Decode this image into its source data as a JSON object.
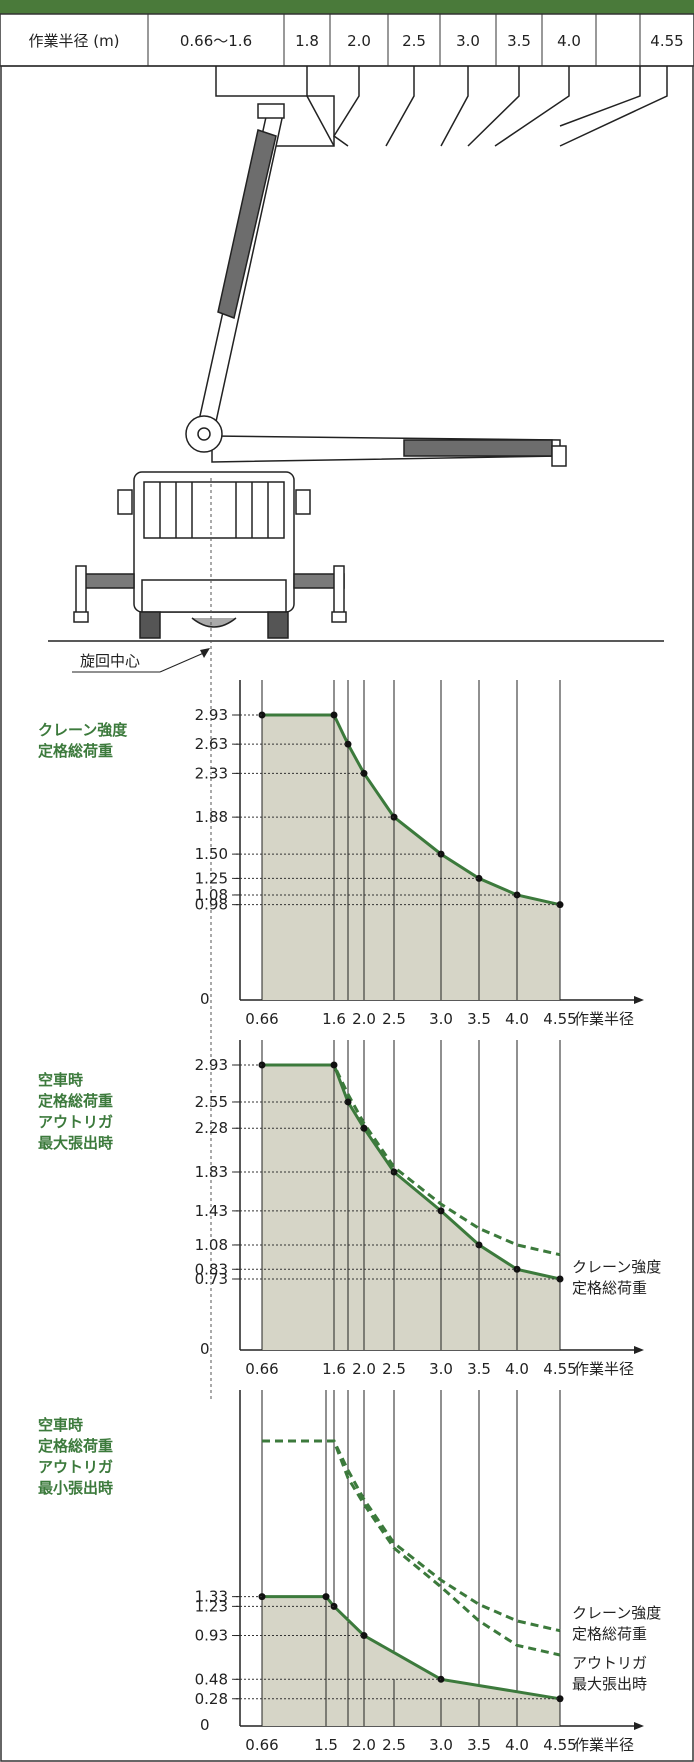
{
  "header": {
    "label": "作業半径 (m)",
    "radii": [
      "0.66〜1.6",
      "1.8",
      "2.0",
      "2.5",
      "3.0",
      "3.5",
      "4.0",
      "4.55"
    ]
  },
  "rotation_center_label": "旋回中心",
  "colors": {
    "accent": "#3c7a3c",
    "fill": "#d6d5c7",
    "line": "#222222",
    "header_bar": "#4a7a3a"
  },
  "chart_data": [
    {
      "type": "area",
      "title": [
        "クレーン強度",
        "定格総荷重"
      ],
      "xlabel": "作業半径",
      "x_ticks": [
        "0.66",
        "1.6",
        "2.0",
        "2.5",
        "3.0",
        "3.5",
        "4.0",
        "4.55"
      ],
      "y_ticks": [
        "2.93",
        "2.63",
        "2.33",
        "1.88",
        "1.50",
        "1.25",
        "1.08",
        "0.98"
      ],
      "y_tick_colors": [
        "#222",
        "#222",
        "#222",
        "#222",
        "#222",
        "#222",
        "#3c7a3c",
        "#3c7a3c"
      ],
      "zero_label": "0",
      "series": [
        {
          "x": [
            0.66,
            1.6,
            1.8,
            2.0,
            2.5,
            3.0,
            3.5,
            4.0,
            4.55
          ],
          "y": [
            2.93,
            2.93,
            2.63,
            2.33,
            1.88,
            1.5,
            1.25,
            1.08,
            0.98
          ]
        }
      ],
      "notes": []
    },
    {
      "type": "area",
      "title": [
        "空車時",
        "定格総荷重",
        "アウトリガ",
        "最大張出時"
      ],
      "xlabel": "作業半径",
      "x_ticks": [
        "0.66",
        "1.6",
        "2.0",
        "2.5",
        "3.0",
        "3.5",
        "4.0",
        "4.55"
      ],
      "y_ticks": [
        "2.93",
        "2.55",
        "2.28",
        "1.83",
        "1.43",
        "1.08",
        "0.83",
        "0.73"
      ],
      "y_tick_colors": [
        "#222",
        "#222",
        "#222",
        "#222",
        "#222",
        "#222",
        "#3c7a3c",
        "#3c7a3c"
      ],
      "zero_label": "0",
      "series": [
        {
          "x": [
            0.66,
            1.6,
            1.8,
            2.0,
            2.5,
            3.0,
            3.5,
            4.0,
            4.55
          ],
          "y": [
            2.93,
            2.93,
            2.55,
            2.28,
            1.83,
            1.43,
            1.08,
            0.83,
            0.73
          ]
        }
      ],
      "reference_series": [
        {
          "x": [
            0.66,
            1.6,
            1.8,
            2.0,
            2.5,
            3.0,
            3.5,
            4.0,
            4.55
          ],
          "y": [
            2.93,
            2.93,
            2.63,
            2.33,
            1.88,
            1.5,
            1.25,
            1.08,
            0.98
          ]
        }
      ],
      "notes": [
        [
          "クレーン強度",
          "定格総荷重"
        ]
      ]
    },
    {
      "type": "area",
      "title": [
        "空車時",
        "定格総荷重",
        "アウトリガ",
        "最小張出時"
      ],
      "xlabel": "作業半径",
      "x_ticks": [
        "0.66",
        "1.5",
        "2.0",
        "2.5",
        "3.0",
        "3.5",
        "4.0",
        "4.55"
      ],
      "y_ticks": [
        "1.33",
        "1.23",
        "0.93",
        "0.48",
        "0.28"
      ],
      "y_tick_colors": [
        "#222",
        "#222",
        "#222",
        "#222",
        "#222"
      ],
      "zero_label": "0",
      "series": [
        {
          "x": [
            0.66,
            1.5,
            1.6,
            2.0,
            3.0,
            4.55
          ],
          "y": [
            1.33,
            1.33,
            1.23,
            0.93,
            0.48,
            0.28
          ]
        }
      ],
      "reference_series": [
        {
          "x": [
            0.66,
            1.6,
            1.8,
            2.0,
            2.5,
            3.0,
            3.5,
            4.0,
            4.55
          ],
          "y": [
            2.93,
            2.93,
            2.63,
            2.33,
            1.88,
            1.5,
            1.25,
            1.08,
            0.98
          ]
        },
        {
          "x": [
            0.66,
            1.6,
            1.8,
            2.0,
            2.5,
            3.0,
            3.5,
            4.0,
            4.55
          ],
          "y": [
            2.93,
            2.93,
            2.55,
            2.28,
            1.83,
            1.43,
            1.08,
            0.83,
            0.73
          ]
        }
      ],
      "notes": [
        [
          "クレーン強度",
          "定格総荷重"
        ],
        [
          "アウトリガ",
          "最大張出時"
        ]
      ]
    }
  ]
}
